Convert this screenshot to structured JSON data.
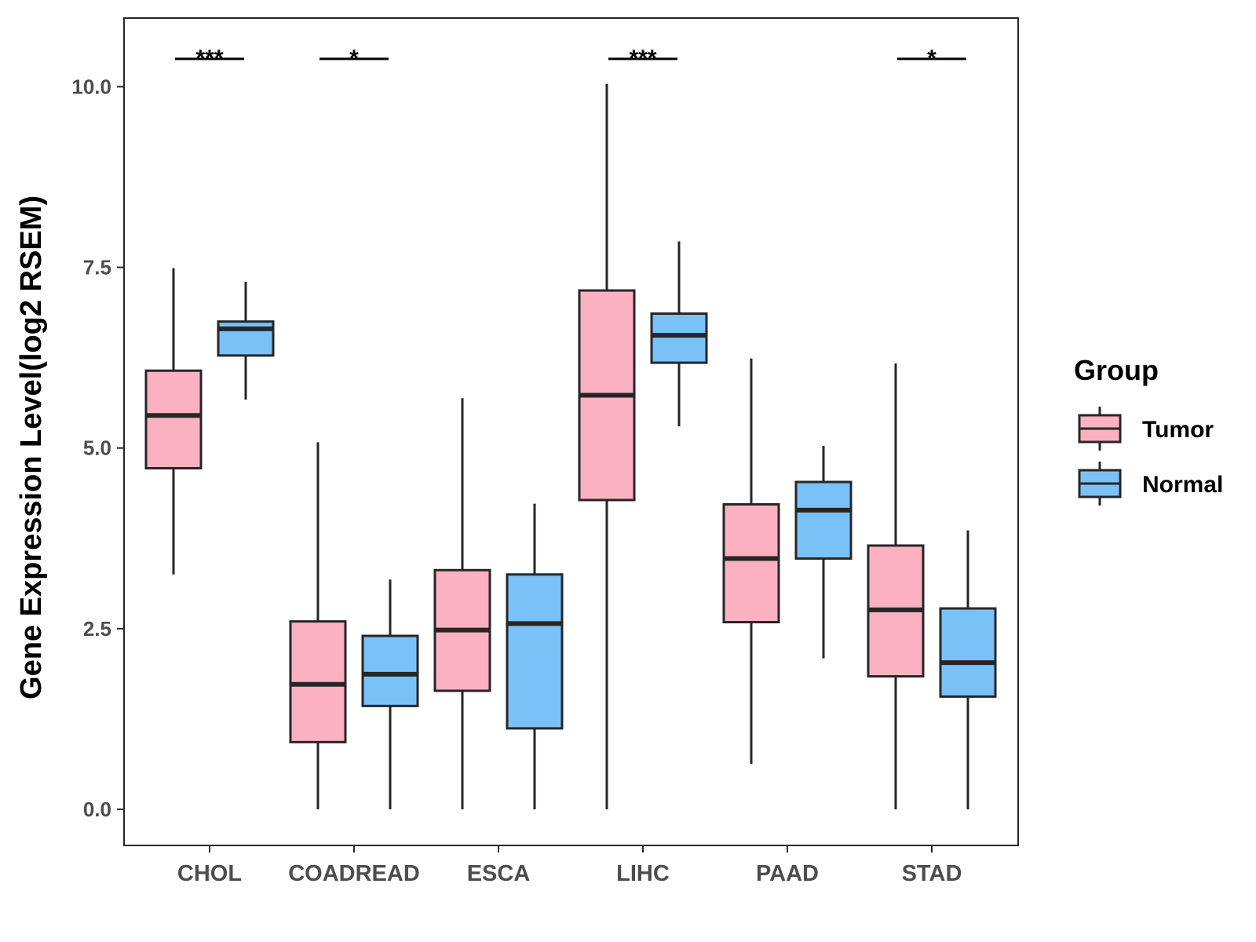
{
  "chart_data": {
    "type": "boxplot",
    "title": "",
    "xlabel": "",
    "ylabel": "Gene Expression Level(log2 RSEM)",
    "ylim": [
      -0.5,
      10.95
    ],
    "yticks": [
      0.0,
      2.5,
      5.0,
      7.5,
      10.0
    ],
    "ytick_labels": [
      "0.0",
      "2.5",
      "5.0",
      "7.5",
      "10.0"
    ],
    "categories": [
      "CHOL",
      "COADREAD",
      "ESCA",
      "LIHC",
      "PAAD",
      "STAD"
    ],
    "legend": {
      "title": "Group",
      "position": "right",
      "entries": [
        {
          "name": "Tumor",
          "color": "#fbb1c1"
        },
        {
          "name": "Normal",
          "color": "#7ac1f7"
        }
      ]
    },
    "series": [
      {
        "name": "Tumor",
        "color": "#fbb1c1",
        "boxes": [
          {
            "min": 3.25,
            "q1": 4.72,
            "median": 5.45,
            "q3": 6.07,
            "max": 7.49
          },
          {
            "min": 0.0,
            "q1": 0.93,
            "median": 1.73,
            "q3": 2.6,
            "max": 5.08
          },
          {
            "min": 0.0,
            "q1": 1.64,
            "median": 2.48,
            "q3": 3.31,
            "max": 5.69
          },
          {
            "min": 0.0,
            "q1": 4.28,
            "median": 5.73,
            "q3": 7.18,
            "max": 10.04
          },
          {
            "min": 0.63,
            "q1": 2.59,
            "median": 3.47,
            "q3": 4.22,
            "max": 6.24
          },
          {
            "min": 0.0,
            "q1": 1.84,
            "median": 2.76,
            "q3": 3.65,
            "max": 6.17
          }
        ]
      },
      {
        "name": "Normal",
        "color": "#7ac1f7",
        "boxes": [
          {
            "min": 5.67,
            "q1": 6.28,
            "median": 6.65,
            "q3": 6.75,
            "max": 7.3
          },
          {
            "min": 0.0,
            "q1": 1.43,
            "median": 1.87,
            "q3": 2.4,
            "max": 3.18
          },
          {
            "min": 0.0,
            "q1": 1.12,
            "median": 2.57,
            "q3": 3.25,
            "max": 4.23
          },
          {
            "min": 5.3,
            "q1": 6.18,
            "median": 6.56,
            "q3": 6.86,
            "max": 7.86
          },
          {
            "min": 2.09,
            "q1": 3.47,
            "median": 4.14,
            "q3": 4.53,
            "max": 5.03
          },
          {
            "min": 0.0,
            "q1": 1.56,
            "median": 2.03,
            "q3": 2.78,
            "max": 3.86
          }
        ]
      }
    ],
    "significance": [
      {
        "category": "CHOL",
        "label": "***"
      },
      {
        "category": "COADREAD",
        "label": "*"
      },
      {
        "category": "LIHC",
        "label": "***"
      },
      {
        "category": "STAD",
        "label": "*"
      }
    ],
    "styles": {
      "line_color": "#262626",
      "panel_border_color": "#262626",
      "background": "#ffffff"
    }
  }
}
